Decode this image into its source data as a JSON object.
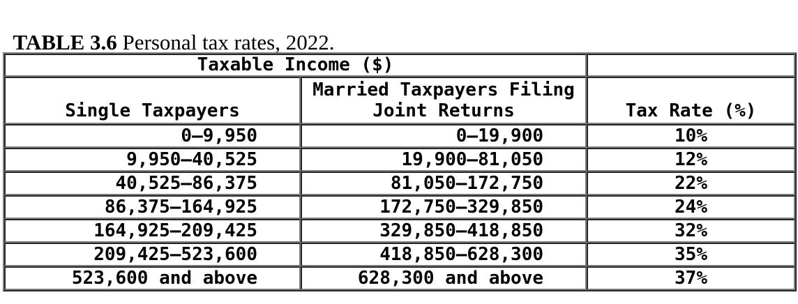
{
  "caption": {
    "label": "TABLE 3.6",
    "rest": " Personal tax rates, 2022."
  },
  "table": {
    "group_header": "Taxable Income ($)",
    "columns": [
      "Single Taxpayers",
      "Married Taxpayers Filing\nJoint Returns",
      "Tax Rate (%)"
    ],
    "rows": [
      [
        "0–9,950",
        "0–19,900",
        "10%"
      ],
      [
        "9,950–40,525",
        "19,900–81,050",
        "12%"
      ],
      [
        "40,525–86,375",
        "81,050–172,750",
        "22%"
      ],
      [
        "86,375–164,925",
        "172,750–329,850",
        "24%"
      ],
      [
        "164,925–209,425",
        "329,850–418,850",
        "32%"
      ],
      [
        "209,425–523,600",
        "418,850–628,300",
        "35%"
      ],
      [
        "523,600 and above",
        "628,300 and above",
        "37%"
      ]
    ],
    "colors": {
      "text": "#000000",
      "border_light": "#7f7f7f",
      "border_dark": "#262626",
      "background": "#ffffff"
    }
  }
}
